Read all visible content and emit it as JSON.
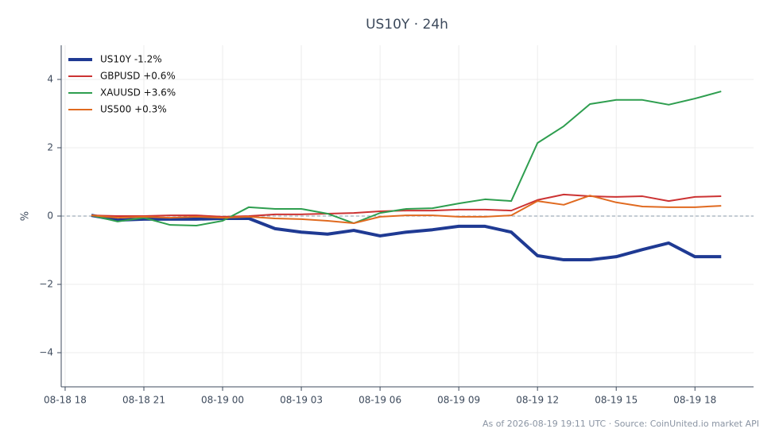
{
  "chart_data": {
    "type": "line",
    "title": "US10Y · 24h",
    "ylabel": "%",
    "footer": "As of 2026-08-19 19:11 UTC · Source: CoinUnited.io market API",
    "x": [
      "08-18 19",
      "08-18 20",
      "08-18 21",
      "08-18 22",
      "08-18 23",
      "08-19 00",
      "08-19 01",
      "08-19 02",
      "08-19 03",
      "08-19 04",
      "08-19 05",
      "08-19 06",
      "08-19 07",
      "08-19 08",
      "08-19 09",
      "08-19 10",
      "08-19 11",
      "08-19 12",
      "08-19 13",
      "08-19 14",
      "08-19 15",
      "08-19 16",
      "08-19 17",
      "08-19 18",
      "08-19 19"
    ],
    "series": [
      {
        "name": "US10Y -1.2%",
        "color": "#1f3a93",
        "width": 4,
        "values": [
          0.02,
          -0.12,
          -0.09,
          -0.09,
          -0.09,
          -0.07,
          -0.07,
          -0.37,
          -0.47,
          -0.53,
          -0.42,
          -0.58,
          -0.47,
          -0.4,
          -0.3,
          -0.3,
          -0.47,
          -1.16,
          -1.28,
          -1.28,
          -1.19,
          -0.98,
          -0.79,
          -1.19,
          -1.19
        ]
      },
      {
        "name": "GBPUSD +0.6%",
        "color": "#cc3333",
        "width": 2,
        "values": [
          0.02,
          0,
          0,
          0.02,
          0.02,
          -0.02,
          0,
          0.05,
          0.05,
          0.07,
          0.09,
          0.14,
          0.16,
          0.16,
          0.19,
          0.19,
          0.16,
          0.47,
          0.63,
          0.58,
          0.56,
          0.58,
          0.44,
          0.56,
          0.58
        ]
      },
      {
        "name": "XAUUSD +3.6%",
        "color": "#2e9e4f",
        "width": 2,
        "values": [
          0.02,
          -0.16,
          -0.05,
          -0.26,
          -0.28,
          -0.14,
          0.26,
          0.21,
          0.21,
          0.07,
          -0.21,
          0.09,
          0.21,
          0.23,
          0.37,
          0.49,
          0.44,
          2.14,
          2.63,
          3.28,
          3.4,
          3.4,
          3.26,
          3.44,
          3.65
        ]
      },
      {
        "name": "US500 +0.3%",
        "color": "#e06a20",
        "width": 2,
        "values": [
          0.02,
          -0.05,
          -0.02,
          -0.05,
          -0.02,
          -0.05,
          -0.02,
          -0.07,
          -0.09,
          -0.14,
          -0.21,
          -0.02,
          0.02,
          0.02,
          -0.02,
          -0.02,
          0.02,
          0.44,
          0.33,
          0.6,
          0.4,
          0.28,
          0.26,
          0.26,
          0.3
        ]
      }
    ],
    "xlim": [
      "08-18 17:51",
      "08-19 20:14"
    ],
    "xticks": [
      "08-18 18",
      "08-18 21",
      "08-19 00",
      "08-19 03",
      "08-19 06",
      "08-19 09",
      "08-19 12",
      "08-19 15",
      "08-19 18"
    ],
    "ylim": [
      -5,
      5
    ],
    "yticks": [
      {
        "value": -4,
        "label": "−4"
      },
      {
        "value": -2,
        "label": "−2"
      },
      0,
      2,
      4
    ],
    "reference_line": 0,
    "grid": true,
    "legend": "upper left"
  }
}
